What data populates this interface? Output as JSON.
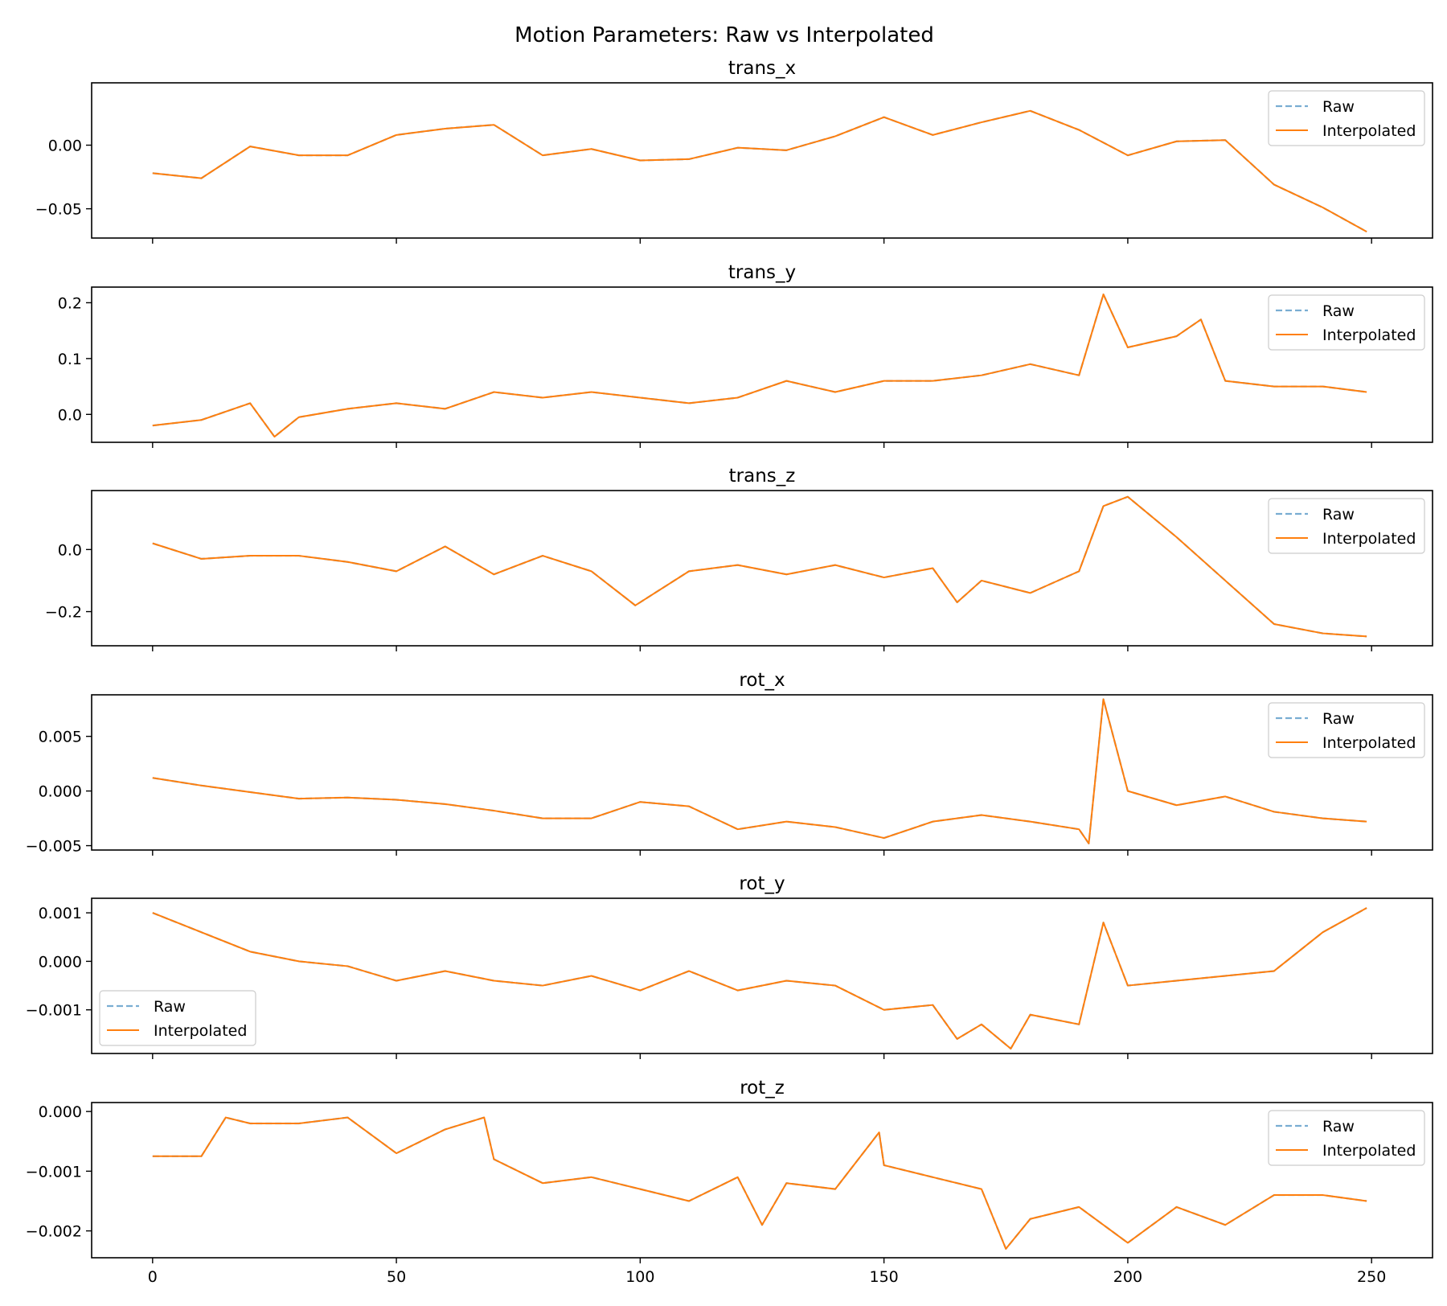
{
  "figure": {
    "title": "Motion Parameters: Raw vs Interpolated"
  },
  "colors": {
    "raw": "#1f77b4",
    "interpolated": "#ff7f0e",
    "axis": "#000000",
    "legend_border": "#cccccc"
  },
  "chart_data": [
    {
      "type": "line",
      "title": "trans_x",
      "xlim": [
        -12.5,
        262.5
      ],
      "ylim": [
        -0.073,
        0.049
      ],
      "yticks": [
        0.0,
        -0.05
      ],
      "ytick_labels": [
        "0.00",
        "−0.05"
      ],
      "legend_loc": "upper right",
      "x": [
        0,
        10,
        20,
        30,
        40,
        50,
        60,
        70,
        80,
        90,
        100,
        110,
        120,
        130,
        140,
        150,
        160,
        170,
        180,
        190,
        200,
        210,
        220,
        230,
        240,
        249
      ],
      "series": [
        {
          "name": "Raw",
          "style": "dashed",
          "values": [
            -0.022,
            -0.026,
            -0.001,
            -0.008,
            -0.008,
            0.008,
            0.013,
            0.016,
            -0.008,
            -0.003,
            -0.012,
            -0.011,
            -0.002,
            -0.004,
            0.007,
            0.022,
            0.008,
            0.018,
            0.027,
            0.012,
            -0.008,
            0.003,
            0.004,
            -0.031,
            -0.049,
            -0.068
          ]
        },
        {
          "name": "Interpolated",
          "style": "solid",
          "values": [
            -0.022,
            -0.026,
            -0.001,
            -0.008,
            -0.008,
            0.008,
            0.013,
            0.016,
            -0.008,
            -0.003,
            -0.012,
            -0.011,
            -0.002,
            -0.004,
            0.007,
            0.022,
            0.008,
            0.018,
            0.027,
            0.012,
            -0.008,
            0.003,
            0.004,
            -0.031,
            -0.049,
            -0.068
          ]
        }
      ]
    },
    {
      "type": "line",
      "title": "trans_y",
      "xlim": [
        -12.5,
        262.5
      ],
      "ylim": [
        -0.05,
        0.228
      ],
      "yticks": [
        0.2,
        0.1,
        0.0
      ],
      "ytick_labels": [
        "0.2",
        "0.1",
        "0.0"
      ],
      "legend_loc": "upper right",
      "x": [
        0,
        10,
        20,
        25,
        30,
        40,
        50,
        60,
        70,
        80,
        90,
        100,
        110,
        120,
        130,
        140,
        150,
        160,
        170,
        180,
        190,
        195,
        200,
        210,
        215,
        220,
        230,
        240,
        249
      ],
      "series": [
        {
          "name": "Raw",
          "style": "dashed",
          "values": [
            -0.02,
            -0.01,
            0.02,
            -0.04,
            -0.005,
            0.01,
            0.02,
            0.01,
            0.04,
            0.03,
            0.04,
            0.03,
            0.02,
            0.03,
            0.06,
            0.04,
            0.06,
            0.06,
            0.07,
            0.09,
            0.07,
            0.215,
            0.12,
            0.14,
            0.17,
            0.06,
            0.05,
            0.05,
            0.04
          ]
        },
        {
          "name": "Interpolated",
          "style": "solid",
          "values": [
            -0.02,
            -0.01,
            0.02,
            -0.04,
            -0.005,
            0.01,
            0.02,
            0.01,
            0.04,
            0.03,
            0.04,
            0.03,
            0.02,
            0.03,
            0.06,
            0.04,
            0.06,
            0.06,
            0.07,
            0.09,
            0.07,
            0.215,
            0.12,
            0.14,
            0.17,
            0.06,
            0.05,
            0.05,
            0.04
          ]
        }
      ]
    },
    {
      "type": "line",
      "title": "trans_z",
      "xlim": [
        -12.5,
        262.5
      ],
      "ylim": [
        -0.31,
        0.19
      ],
      "yticks": [
        0.0,
        -0.2
      ],
      "ytick_labels": [
        "0.0",
        "−0.2"
      ],
      "legend_loc": "upper right",
      "x": [
        0,
        10,
        20,
        30,
        40,
        50,
        60,
        70,
        80,
        90,
        99,
        110,
        120,
        130,
        140,
        150,
        160,
        165,
        170,
        180,
        190,
        195,
        200,
        210,
        220,
        230,
        240,
        249
      ],
      "series": [
        {
          "name": "Raw",
          "style": "dashed",
          "values": [
            0.02,
            -0.03,
            -0.02,
            -0.02,
            -0.04,
            -0.07,
            0.01,
            -0.08,
            -0.02,
            -0.07,
            -0.18,
            -0.07,
            -0.05,
            -0.08,
            -0.05,
            -0.09,
            -0.06,
            -0.17,
            -0.1,
            -0.14,
            -0.07,
            0.14,
            0.17,
            0.04,
            -0.1,
            -0.24,
            -0.27,
            -0.28
          ]
        },
        {
          "name": "Interpolated",
          "style": "solid",
          "values": [
            0.02,
            -0.03,
            -0.02,
            -0.02,
            -0.04,
            -0.07,
            0.01,
            -0.08,
            -0.02,
            -0.07,
            -0.18,
            -0.07,
            -0.05,
            -0.08,
            -0.05,
            -0.09,
            -0.06,
            -0.17,
            -0.1,
            -0.14,
            -0.07,
            0.14,
            0.17,
            0.04,
            -0.1,
            -0.24,
            -0.27,
            -0.28
          ]
        }
      ]
    },
    {
      "type": "line",
      "title": "rot_x",
      "xlim": [
        -12.5,
        262.5
      ],
      "ylim": [
        -0.0054,
        0.0088
      ],
      "yticks": [
        0.005,
        0.0,
        -0.005
      ],
      "ytick_labels": [
        "0.005",
        "0.000",
        "−0.005"
      ],
      "legend_loc": "upper right",
      "x": [
        0,
        10,
        20,
        30,
        40,
        50,
        60,
        70,
        80,
        90,
        100,
        110,
        120,
        130,
        140,
        150,
        160,
        170,
        180,
        190,
        192,
        195,
        200,
        210,
        220,
        230,
        240,
        249
      ],
      "series": [
        {
          "name": "Raw",
          "style": "dashed",
          "values": [
            0.0012,
            0.0005,
            -0.0001,
            -0.0007,
            -0.0006,
            -0.0008,
            -0.0012,
            -0.0018,
            -0.0025,
            -0.0025,
            -0.001,
            -0.0014,
            -0.0035,
            -0.0028,
            -0.0033,
            -0.0043,
            -0.0028,
            -0.0022,
            -0.0028,
            -0.0035,
            -0.0048,
            0.0084,
            0.0,
            -0.0013,
            -0.0005,
            -0.0019,
            -0.0025,
            -0.0028
          ]
        },
        {
          "name": "Interpolated",
          "style": "solid",
          "values": [
            0.0012,
            0.0005,
            -0.0001,
            -0.0007,
            -0.0006,
            -0.0008,
            -0.0012,
            -0.0018,
            -0.0025,
            -0.0025,
            -0.001,
            -0.0014,
            -0.0035,
            -0.0028,
            -0.0033,
            -0.0043,
            -0.0028,
            -0.0022,
            -0.0028,
            -0.0035,
            -0.0048,
            0.0084,
            0.0,
            -0.0013,
            -0.0005,
            -0.0019,
            -0.0025,
            -0.0028
          ]
        }
      ]
    },
    {
      "type": "line",
      "title": "rot_y",
      "xlim": [
        -12.5,
        262.5
      ],
      "ylim": [
        -0.0019,
        0.0013
      ],
      "yticks": [
        0.001,
        0.0,
        -0.001
      ],
      "ytick_labels": [
        "0.001",
        "0.000",
        "−0.001"
      ],
      "legend_loc": "lower left",
      "x": [
        0,
        10,
        20,
        30,
        40,
        50,
        60,
        70,
        80,
        90,
        100,
        110,
        120,
        130,
        140,
        150,
        160,
        165,
        170,
        176,
        180,
        190,
        195,
        200,
        210,
        220,
        230,
        240,
        249
      ],
      "series": [
        {
          "name": "Raw",
          "style": "dashed",
          "values": [
            0.001,
            0.0006,
            0.0002,
            0.0,
            -0.0001,
            -0.0004,
            -0.0002,
            -0.0004,
            -0.0005,
            -0.0003,
            -0.0006,
            -0.0002,
            -0.0006,
            -0.0004,
            -0.0005,
            -0.001,
            -0.0009,
            -0.0016,
            -0.0013,
            -0.0018,
            -0.0011,
            -0.0013,
            0.0008,
            -0.0005,
            -0.0004,
            -0.0003,
            -0.0002,
            0.0006,
            0.0011
          ]
        },
        {
          "name": "Interpolated",
          "style": "solid",
          "values": [
            0.001,
            0.0006,
            0.0002,
            0.0,
            -0.0001,
            -0.0004,
            -0.0002,
            -0.0004,
            -0.0005,
            -0.0003,
            -0.0006,
            -0.0002,
            -0.0006,
            -0.0004,
            -0.0005,
            -0.001,
            -0.0009,
            -0.0016,
            -0.0013,
            -0.0018,
            -0.0011,
            -0.0013,
            0.0008,
            -0.0005,
            -0.0004,
            -0.0003,
            -0.0002,
            0.0006,
            0.0011
          ]
        }
      ]
    },
    {
      "type": "line",
      "title": "rot_z",
      "xlim": [
        -12.5,
        262.5
      ],
      "ylim": [
        -0.00245,
        0.00015
      ],
      "yticks": [
        0.0,
        -0.001,
        -0.002
      ],
      "ytick_labels": [
        "0.000",
        "−0.001",
        "−0.002"
      ],
      "xticks": [
        0,
        50,
        100,
        150,
        200,
        250
      ],
      "xtick_labels": [
        "0",
        "50",
        "100",
        "150",
        "200",
        "250"
      ],
      "legend_loc": "upper right",
      "x": [
        0,
        10,
        15,
        20,
        30,
        40,
        50,
        60,
        68,
        70,
        80,
        90,
        100,
        110,
        120,
        125,
        130,
        140,
        149,
        150,
        160,
        170,
        175,
        180,
        190,
        200,
        210,
        220,
        230,
        240,
        249
      ],
      "series": [
        {
          "name": "Raw",
          "style": "dashed",
          "values": [
            -0.00075,
            -0.00075,
            -0.0001,
            -0.0002,
            -0.0002,
            -0.0001,
            -0.0007,
            -0.0003,
            -0.0001,
            -0.0008,
            -0.0012,
            -0.0011,
            -0.0013,
            -0.0015,
            -0.0011,
            -0.0019,
            -0.0012,
            -0.0013,
            -0.00035,
            -0.0009,
            -0.0011,
            -0.0013,
            -0.0023,
            -0.0018,
            -0.0016,
            -0.0022,
            -0.0016,
            -0.0019,
            -0.0014,
            -0.0014,
            -0.0015
          ]
        },
        {
          "name": "Interpolated",
          "style": "solid",
          "values": [
            -0.00075,
            -0.00075,
            -0.0001,
            -0.0002,
            -0.0002,
            -0.0001,
            -0.0007,
            -0.0003,
            -0.0001,
            -0.0008,
            -0.0012,
            -0.0011,
            -0.0013,
            -0.0015,
            -0.0011,
            -0.0019,
            -0.0012,
            -0.0013,
            -0.00035,
            -0.0009,
            -0.0011,
            -0.0013,
            -0.0023,
            -0.0018,
            -0.0016,
            -0.0022,
            -0.0016,
            -0.0019,
            -0.0014,
            -0.0014,
            -0.0015
          ]
        }
      ]
    }
  ]
}
